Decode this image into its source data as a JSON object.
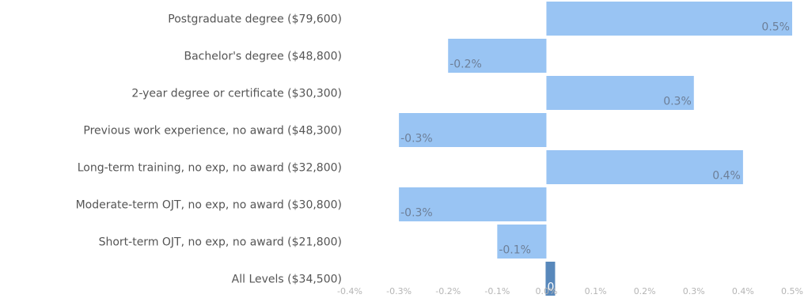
{
  "chart_data": {
    "type": "bar",
    "orientation": "horizontal",
    "title": "",
    "xlabel": "",
    "ylabel": "",
    "categories": [
      "Postgraduate degree ($79,600)",
      "Bachelor's degree ($48,800)",
      "2-year degree or certificate ($30,300)",
      "Previous work experience, no award ($48,300)",
      "Long-term training, no exp, no award ($32,800)",
      "Moderate-term OJT, no exp, no award ($30,800)",
      "Short-term OJT, no exp, no award ($21,800)",
      "All Levels ($34,500)"
    ],
    "values": [
      0.5,
      -0.2,
      0.3,
      -0.3,
      0.4,
      -0.3,
      -0.1,
      0.0
    ],
    "value_labels": [
      "0.5%",
      "-0.2%",
      "0.3%",
      "-0.3%",
      "0.4%",
      "-0.3%",
      "-0.1%",
      "0.0%"
    ],
    "xlim": [
      -0.4,
      0.5
    ],
    "x_ticks": [
      -0.4,
      -0.3,
      -0.2,
      -0.1,
      0.0,
      0.1,
      0.2,
      0.3,
      0.4,
      0.5
    ],
    "x_tick_labels": [
      "-0.4%",
      "-0.3%",
      "-0.2%",
      "-0.1%",
      "0.0%",
      "0.1%",
      "0.2%",
      "0.3%",
      "0.4%",
      "0.5%"
    ],
    "grid": false,
    "legend": "none",
    "colors": {
      "bar": "#90bff2",
      "highlight_bar": "#4a7eb5"
    }
  }
}
